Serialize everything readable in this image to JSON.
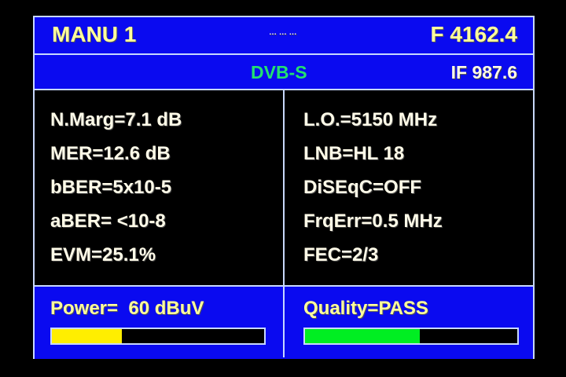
{
  "header": {
    "mode": "MANU 1",
    "center": "… … …",
    "frequency": "F 4162.4"
  },
  "subheader": {
    "standard": "DVB-S",
    "if_freq": "IF 987.6"
  },
  "left_params": [
    "N.Marg=7.1 dB",
    "MER=12.6 dB",
    "bBER=5x10-5",
    "aBER= <10-8",
    "EVM=25.1%"
  ],
  "right_params": [
    "L.O.=5150 MHz",
    "LNB=HL 18",
    "DiSEqC=OFF",
    "FrqErr=0.5 MHz",
    "FEC=2/3"
  ],
  "power": {
    "label": "Power=  60 dBuV",
    "level_percent": 33,
    "color": "#ffee00"
  },
  "quality": {
    "label": "Quality=PASS",
    "level_percent": 54,
    "color": "#00ee22"
  }
}
